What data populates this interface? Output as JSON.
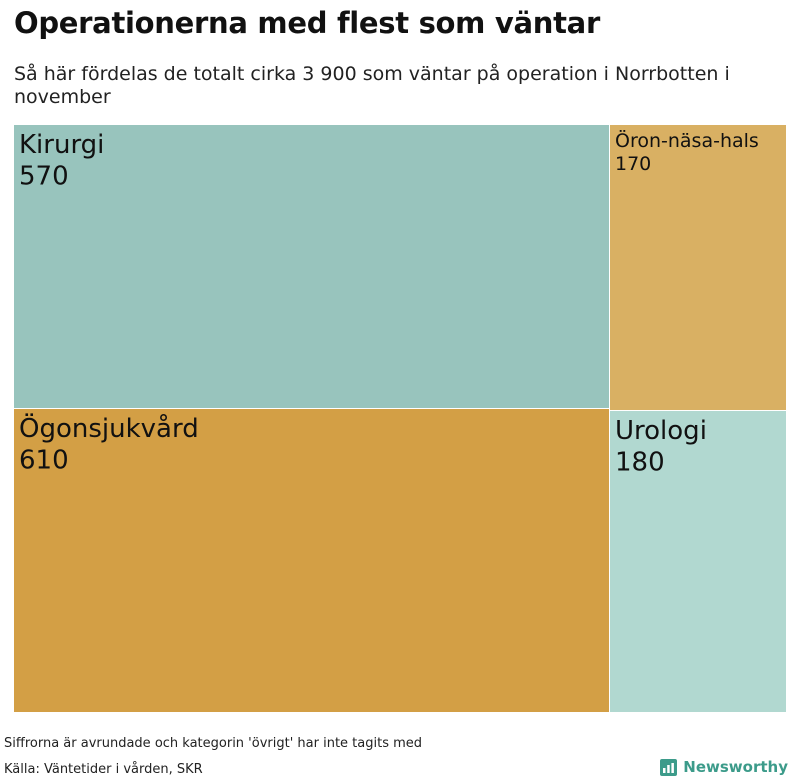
{
  "header": {
    "title": "Operationerna med flest som väntar",
    "subtitle": "Så här fördelas de totalt cirka 3 900 som väntar på operation i Norrbotten i november"
  },
  "chart_data": {
    "type": "treemap",
    "items": [
      {
        "name": "Ögonsjukvård",
        "value": 610,
        "color": "#d39f45"
      },
      {
        "name": "Kirurgi",
        "value": 570,
        "color": "#98c4bd"
      },
      {
        "name": "Urologi",
        "value": 180,
        "color": "#b1d8d0"
      },
      {
        "name": "Öron-näsa-hals",
        "value": 170,
        "color": "#d9b063"
      }
    ]
  },
  "footer": {
    "note": "Siffrorna är avrundade och kategorin 'övrigt' har inte tagits med",
    "source": "Källa: Väntetider i vården, SKR",
    "brand": "Newsworthy",
    "brand_color": "#3c9b8a"
  }
}
